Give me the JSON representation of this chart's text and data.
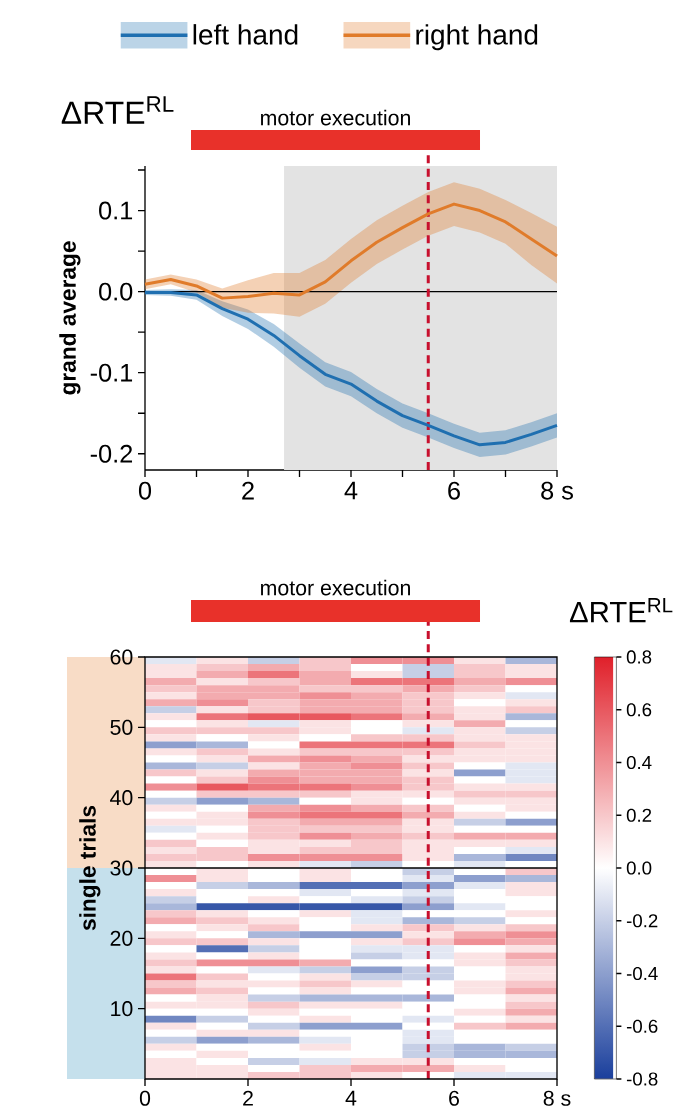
{
  "chart_data": [
    {
      "type": "line",
      "title": "ΔRTE$^{RL}$",
      "ylabel": "grand average",
      "x": [
        0,
        0.5,
        1,
        1.5,
        2,
        2.5,
        3,
        3.5,
        4,
        4.5,
        5,
        5.5,
        6,
        6.5,
        7,
        7.5,
        8
      ],
      "series": [
        {
          "name": "left hand",
          "color": "#1f6fb0",
          "values": [
            -0.001,
            -0.001,
            -0.004,
            -0.021,
            -0.034,
            -0.054,
            -0.079,
            -0.102,
            -0.114,
            -0.135,
            -0.153,
            -0.165,
            -0.178,
            -0.189,
            -0.186,
            -0.176,
            -0.165
          ],
          "upper": [
            0.002,
            0.003,
            0.002,
            -0.012,
            -0.022,
            -0.04,
            -0.064,
            -0.087,
            -0.099,
            -0.12,
            -0.138,
            -0.15,
            -0.163,
            -0.174,
            -0.171,
            -0.161,
            -0.15
          ],
          "lower": [
            -0.004,
            -0.005,
            -0.01,
            -0.03,
            -0.046,
            -0.068,
            -0.094,
            -0.117,
            -0.129,
            -0.15,
            -0.168,
            -0.18,
            -0.193,
            -0.204,
            -0.201,
            -0.191,
            -0.18
          ]
        },
        {
          "name": "right hand",
          "color": "#e07b2a",
          "values": [
            0.009,
            0.015,
            0.007,
            -0.008,
            -0.006,
            -0.002,
            -0.004,
            0.012,
            0.038,
            0.061,
            0.079,
            0.096,
            0.108,
            0.1,
            0.086,
            0.065,
            0.044
          ],
          "upper": [
            0.015,
            0.021,
            0.015,
            0.004,
            0.014,
            0.023,
            0.023,
            0.039,
            0.065,
            0.088,
            0.106,
            0.123,
            0.135,
            0.127,
            0.113,
            0.097,
            0.08
          ],
          "lower": [
            0.003,
            0.009,
            -0.001,
            -0.02,
            -0.026,
            -0.027,
            -0.031,
            -0.015,
            0.011,
            0.034,
            0.052,
            0.069,
            0.081,
            0.073,
            0.059,
            0.033,
            0.01
          ]
        }
      ],
      "xlim": [
        0,
        8
      ],
      "ylim": [
        -0.22,
        0.155
      ],
      "xticks": [
        0,
        {
          "value": 1,
          "label": null
        },
        2,
        {
          "value": 3,
          "label": null
        },
        4,
        {
          "value": 5,
          "label": null
        },
        6,
        {
          "value": 7,
          "label": null
        },
        {
          "value": 8,
          "label": "8 s"
        }
      ],
      "yticks": [
        {
          "value": -0.2,
          "label": "-0.2"
        },
        {
          "value": -0.15,
          "label": null
        },
        {
          "value": -0.1,
          "label": "-0.1"
        },
        {
          "value": -0.05,
          "label": null
        },
        {
          "value": 0,
          "label": "0.0"
        },
        {
          "value": 0.05,
          "label": null
        },
        {
          "value": 0.1,
          "label": "0.1"
        },
        {
          "value": 0.15,
          "label": null
        }
      ],
      "bands": [
        {
          "axis": "x",
          "from": 2.7,
          "to": 8,
          "color": "#e3e3e3"
        }
      ],
      "annotations": [
        "motor execution"
      ],
      "ref_lines": [
        {
          "axis": "y",
          "value": 0,
          "color": "#000000"
        },
        {
          "axis": "x",
          "value": 5.5,
          "color": "#c8102e",
          "line_style": "dashed"
        }
      ],
      "legend": "top"
    },
    {
      "type": "heatmap",
      "clabel": "ΔRTE$^{RL}$",
      "ylabel": "single trials",
      "cells": [
        [
          -0.1,
          0.1,
          -0.2,
          0.2,
          0.4,
          0.4,
          0.1,
          -0.3
        ],
        [
          0.1,
          0.2,
          0.3,
          0.2,
          0.0,
          -0.2,
          0.2,
          0.1
        ],
        [
          0.1,
          0.3,
          0.5,
          0.3,
          0.1,
          -0.2,
          0.2,
          0.1
        ],
        [
          0.3,
          0.1,
          0.2,
          0.3,
          0.5,
          0.5,
          0.3,
          0.4
        ],
        [
          0.2,
          0.3,
          0.3,
          0.2,
          0.2,
          0.3,
          0.2,
          0.0
        ],
        [
          0.1,
          0.3,
          0.3,
          0.4,
          0.3,
          0.2,
          0.1,
          -0.1
        ],
        [
          0.3,
          0.4,
          0.2,
          0.3,
          0.3,
          0.2,
          0.0,
          0.1
        ],
        [
          -0.2,
          0.1,
          0.2,
          0.3,
          0.3,
          0.2,
          0.1,
          0.2
        ],
        [
          0.1,
          0.5,
          0.6,
          0.6,
          0.5,
          0.3,
          0.1,
          -0.3
        ],
        [
          0.0,
          0.1,
          -0.1,
          0.1,
          0.0,
          0.1,
          0.3,
          0.0
        ],
        [
          0.2,
          0.2,
          0.2,
          0.1,
          0.0,
          -0.1,
          0.1,
          -0.2
        ],
        [
          0.1,
          0.0,
          0.1,
          0.0,
          0.2,
          0.2,
          0.1,
          0.1
        ],
        [
          -0.4,
          -0.3,
          0.0,
          0.5,
          0.5,
          0.5,
          0.2,
          0.1
        ],
        [
          0.1,
          0.2,
          0.1,
          0.2,
          0.2,
          0.2,
          0.1,
          0.1
        ],
        [
          0.0,
          0.1,
          0.3,
          0.4,
          0.3,
          0.1,
          0.1,
          0.1
        ],
        [
          -0.3,
          -0.2,
          0.1,
          0.3,
          0.4,
          0.2,
          0.0,
          -0.1
        ],
        [
          0.2,
          0.1,
          0.3,
          0.3,
          0.3,
          0.1,
          -0.4,
          -0.1
        ],
        [
          0.0,
          0.2,
          0.4,
          0.3,
          0.3,
          0.2,
          0.0,
          -0.1
        ],
        [
          0.4,
          0.6,
          0.5,
          0.5,
          0.4,
          0.2,
          0.1,
          0.1
        ],
        [
          0.0,
          0.2,
          0.2,
          0.2,
          0.1,
          0.1,
          0.2,
          0.2
        ],
        [
          -0.2,
          -0.4,
          -0.3,
          0.0,
          0.1,
          0.0,
          0.1,
          0.1
        ],
        [
          0.1,
          0.0,
          0.3,
          0.4,
          0.3,
          0.2,
          0.0,
          0.1
        ],
        [
          0.0,
          0.1,
          0.4,
          0.5,
          0.5,
          0.3,
          0.1,
          0.0
        ],
        [
          0.1,
          0.1,
          0.2,
          0.3,
          0.3,
          0.1,
          -0.2,
          -0.4
        ],
        [
          -0.1,
          0.0,
          0.2,
          0.2,
          0.2,
          0.1,
          0.0,
          0.0
        ],
        [
          0.0,
          0.1,
          0.2,
          0.4,
          0.3,
          0.2,
          0.3,
          0.3
        ],
        [
          0.2,
          0.0,
          0.1,
          0.1,
          0.2,
          0.1,
          0.1,
          0.1
        ],
        [
          0.1,
          0.2,
          0.1,
          0.2,
          0.2,
          0.1,
          0.0,
          -0.1
        ],
        [
          0.2,
          0.2,
          0.4,
          0.4,
          0.4,
          0.1,
          -0.3,
          -0.5
        ],
        [
          0.1,
          0.0,
          0.1,
          -0.1,
          -0.2,
          0.0,
          -0.1,
          0.0
        ],
        [
          0.0,
          0.1,
          0.0,
          0.1,
          0.0,
          -0.2,
          0.0,
          0.2
        ],
        [
          0.4,
          0.1,
          0.0,
          0.1,
          0.0,
          -0.1,
          -0.4,
          -0.3
        ],
        [
          0.0,
          -0.2,
          -0.3,
          -0.6,
          -0.6,
          -0.4,
          -0.1,
          0.1
        ],
        [
          0.1,
          0.0,
          0.0,
          -0.1,
          0.0,
          -0.1,
          0.0,
          0.1
        ],
        [
          -0.2,
          0.0,
          0.1,
          0.0,
          -0.1,
          -0.2,
          0.0,
          0.0
        ],
        [
          -0.3,
          -0.7,
          -0.7,
          -0.7,
          -0.7,
          -0.4,
          -0.1,
          0.0
        ],
        [
          0.2,
          0.1,
          0.0,
          0.1,
          -0.1,
          0.0,
          0.0,
          0.1
        ],
        [
          0.3,
          0.2,
          0.1,
          0.0,
          -0.1,
          -0.3,
          -0.2,
          0.0
        ],
        [
          0.0,
          0.1,
          0.2,
          0.0,
          0.1,
          0.2,
          0.1,
          0.2
        ],
        [
          0.1,
          0.0,
          -0.3,
          -0.4,
          -0.4,
          0.1,
          0.3,
          0.4
        ],
        [
          0.2,
          0.2,
          0.1,
          0.0,
          0.1,
          0.2,
          0.4,
          0.3
        ],
        [
          0.0,
          -0.6,
          -0.2,
          0.0,
          -0.1,
          -0.1,
          0.0,
          0.1
        ],
        [
          0.1,
          0.0,
          0.1,
          0.0,
          -0.2,
          -0.1,
          0.1,
          0.3
        ],
        [
          0.2,
          0.4,
          0.4,
          0.3,
          0.0,
          0.0,
          0.1,
          0.2
        ],
        [
          0.1,
          0.0,
          -0.1,
          -0.2,
          -0.4,
          -0.2,
          0.0,
          0.1
        ],
        [
          0.5,
          0.2,
          0.0,
          0.1,
          -0.2,
          -0.2,
          0.0,
          0.1
        ],
        [
          0.2,
          0.1,
          0.1,
          0.2,
          0.1,
          0.0,
          0.1,
          0.2
        ],
        [
          0.3,
          0.2,
          0.0,
          0.1,
          0.0,
          0.0,
          0.1,
          0.3
        ],
        [
          0.0,
          0.1,
          -0.2,
          -0.3,
          -0.3,
          -0.3,
          0.0,
          0.1
        ],
        [
          0.1,
          0.1,
          0.2,
          0.1,
          0.1,
          0.0,
          0.0,
          0.2
        ],
        [
          0.0,
          0.0,
          0.1,
          0.0,
          0.0,
          0.0,
          0.1,
          0.3
        ],
        [
          -0.5,
          -0.2,
          0.0,
          0.1,
          0.0,
          -0.1,
          0.0,
          0.1
        ],
        [
          0.1,
          0.0,
          -0.2,
          -0.4,
          -0.4,
          0.0,
          0.2,
          0.3
        ],
        [
          0.0,
          0.1,
          0.1,
          0.0,
          0.0,
          -0.1,
          0.0,
          0.0
        ],
        [
          -0.2,
          -0.4,
          -0.3,
          -0.1,
          0.0,
          -0.1,
          0.0,
          0.0
        ],
        [
          0.1,
          0.0,
          0.0,
          0.1,
          0.0,
          -0.2,
          -0.3,
          -0.2
        ],
        [
          0.0,
          0.1,
          0.0,
          0.0,
          0.0,
          -0.2,
          -0.3,
          -0.3
        ],
        [
          0.1,
          0.0,
          -0.2,
          -0.1,
          0.1,
          0.1,
          0.0,
          0.0
        ],
        [
          0.1,
          0.1,
          0.0,
          0.2,
          0.3,
          0.3,
          0.1,
          0.0
        ],
        [
          0.1,
          0.1,
          0.2,
          0.2,
          0.1,
          0.0,
          -0.1,
          -0.1
        ]
      ],
      "clim": [
        -0.8,
        0.8
      ],
      "cticks": [
        {
          "value": -0.8,
          "label": "-0.8"
        },
        {
          "value": -0.6,
          "label": "-0.6"
        },
        {
          "value": -0.4,
          "label": "-0.4"
        },
        {
          "value": -0.2,
          "label": "-0.2"
        },
        {
          "value": 0,
          "label": "0.0"
        },
        0.2,
        0.4,
        0.6,
        0.8
      ],
      "xlim": [
        0,
        8
      ],
      "ylim": [
        0,
        60
      ],
      "xticks": [
        0,
        2,
        4,
        6,
        {
          "value": 8,
          "label": "8 s"
        }
      ],
      "yticks": [
        10,
        20,
        30,
        40,
        50,
        60
      ],
      "annotations": [
        "motor execution"
      ],
      "ref_lines": [
        {
          "axis": "y",
          "value": 30,
          "color": "#000000"
        },
        {
          "axis": "x",
          "value": 5.5,
          "color": "#c8102e",
          "line_style": "dashed"
        }
      ]
    }
  ]
}
